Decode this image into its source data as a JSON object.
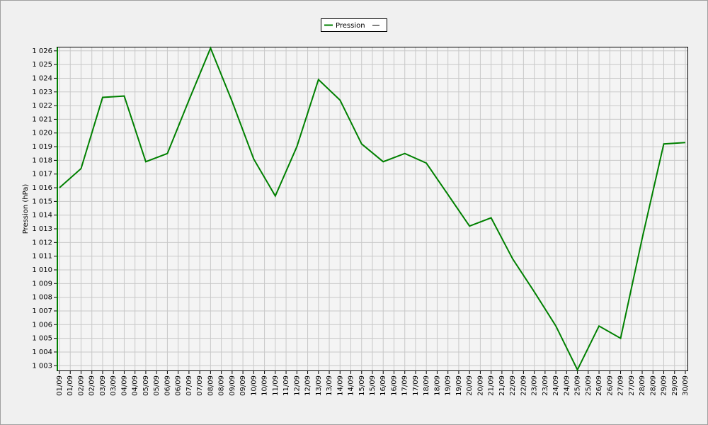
{
  "chart_data": {
    "type": "line",
    "y_label": "Pression (hPa)",
    "x_tick_labels": [
      "01/09",
      "01/09",
      "02/09",
      "02/09",
      "03/09",
      "03/09",
      "04/09",
      "04/09",
      "05/09",
      "05/09",
      "06/09",
      "06/09",
      "07/09",
      "07/09",
      "08/09",
      "08/09",
      "09/09",
      "09/09",
      "10/09",
      "10/09",
      "11/09",
      "11/09",
      "12/09",
      "12/09",
      "13/09",
      "13/09",
      "14/09",
      "14/09",
      "15/09",
      "15/09",
      "16/09",
      "16/09",
      "17/09",
      "17/09",
      "18/09",
      "18/09",
      "19/09",
      "19/09",
      "20/09",
      "20/09",
      "21/09",
      "21/09",
      "22/09",
      "22/09",
      "23/09",
      "23/09",
      "24/09",
      "24/09",
      "25/09",
      "25/09",
      "26/09",
      "26/09",
      "27/09",
      "27/09",
      "28/09",
      "28/09",
      "29/09",
      "29/09",
      "30/09"
    ],
    "series": [
      {
        "name": "Pression",
        "color": "#008000",
        "values": [
          1016.0,
          1017.4,
          1022.6,
          1022.7,
          1017.9,
          1018.5,
          1022.4,
          1026.2,
          1022.3,
          1018.1,
          1015.4,
          1019.0,
          1023.9,
          1022.4,
          1019.2,
          1017.9,
          1018.5,
          1017.8,
          1015.5,
          1013.2,
          1013.8,
          1010.8,
          1008.4,
          1005.9,
          1002.7,
          1005.9,
          1005.0,
          1012.3,
          1019.2,
          1019.3
        ]
      }
    ],
    "ylim": [
      1002.6,
      1026.3
    ],
    "yticks": [
      {
        "value": 1003,
        "label": "1 003"
      },
      {
        "value": 1004,
        "label": "1 004"
      },
      {
        "value": 1005,
        "label": "1 005"
      },
      {
        "value": 1006,
        "label": "1 006"
      },
      {
        "value": 1007,
        "label": "1 007"
      },
      {
        "value": 1008,
        "label": "1 008"
      },
      {
        "value": 1009,
        "label": "1 009"
      },
      {
        "value": 1010,
        "label": "1 010"
      },
      {
        "value": 1011,
        "label": "1 011"
      },
      {
        "value": 1012,
        "label": "1 012"
      },
      {
        "value": 1013,
        "label": "1 013"
      },
      {
        "value": 1014,
        "label": "1 014"
      },
      {
        "value": 1015,
        "label": "1 015"
      },
      {
        "value": 1016,
        "label": "1 016"
      },
      {
        "value": 1017,
        "label": "1 017"
      },
      {
        "value": 1018,
        "label": "1 018"
      },
      {
        "value": 1019,
        "label": "1 019"
      },
      {
        "value": 1020,
        "label": "1 020"
      },
      {
        "value": 1021,
        "label": "1 021"
      },
      {
        "value": 1022,
        "label": "1 022"
      },
      {
        "value": 1023,
        "label": "1 023"
      },
      {
        "value": 1024,
        "label": "1 024"
      },
      {
        "value": 1025,
        "label": "1 025"
      },
      {
        "value": 1026,
        "label": "1 026"
      }
    ],
    "grid": true
  }
}
